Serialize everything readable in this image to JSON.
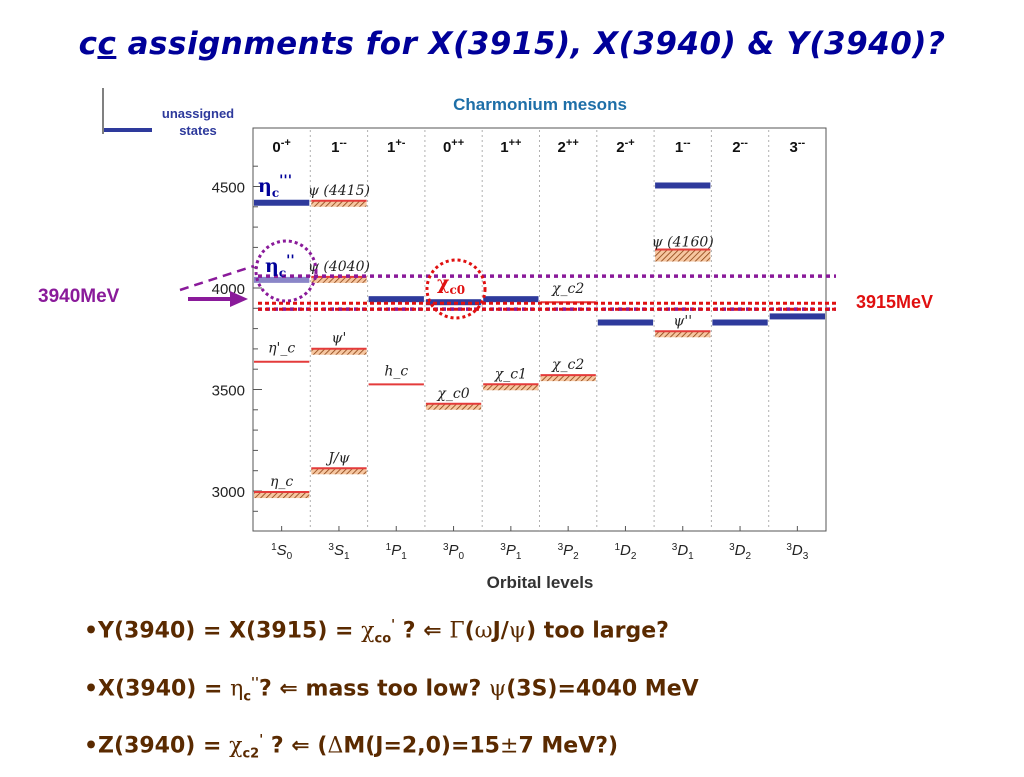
{
  "title_parts": {
    "c1": "c",
    "c2": "c",
    "rest": " assignments for X(3915), X(3940) & Y(3940)?"
  },
  "chart_data": {
    "type": "level-diagram",
    "title": "Charmonium mesons",
    "xlabel": "Orbital levels",
    "ylabel": "",
    "ylim": [
      2850,
      4700
    ],
    "yticks": [
      3000,
      3500,
      4000,
      4500
    ],
    "columns": [
      {
        "jpc": "0-+",
        "orbital": "1S0"
      },
      {
        "jpc": "1--",
        "orbital": "3S1"
      },
      {
        "jpc": "1+-",
        "orbital": "1P1"
      },
      {
        "jpc": "0++",
        "orbital": "3P0"
      },
      {
        "jpc": "1++",
        "orbital": "3P1"
      },
      {
        "jpc": "2++",
        "orbital": "3P2"
      },
      {
        "jpc": "2-+",
        "orbital": "1D2"
      },
      {
        "jpc": "1--",
        "orbital": "3D1"
      },
      {
        "jpc": "2--",
        "orbital": "3D2"
      },
      {
        "jpc": "3--",
        "orbital": "3D3"
      }
    ],
    "states": [
      {
        "col": 0,
        "mass": 2980,
        "label": "η_c",
        "kind": "observed"
      },
      {
        "col": 0,
        "mass": 3637,
        "label": "η'_c",
        "kind": "line"
      },
      {
        "col": 0,
        "mass": 4420,
        "label": "",
        "kind": "unassigned"
      },
      {
        "col": 0,
        "mass": 4040,
        "label": "",
        "kind": "unassigned-light"
      },
      {
        "col": 1,
        "mass": 3097,
        "label": "J/ψ",
        "kind": "observed"
      },
      {
        "col": 1,
        "mass": 3686,
        "label": "ψ'",
        "kind": "observed"
      },
      {
        "col": 1,
        "mass": 4040,
        "label": "ψ (4040)",
        "kind": "observed"
      },
      {
        "col": 1,
        "mass": 4415,
        "label": "ψ (4415)",
        "kind": "observed"
      },
      {
        "col": 2,
        "mass": 3525,
        "label": "h_c",
        "kind": "line"
      },
      {
        "col": 2,
        "mass": 3945,
        "label": "",
        "kind": "unassigned"
      },
      {
        "col": 3,
        "mass": 3415,
        "label": "χ_c0",
        "kind": "observed"
      },
      {
        "col": 3,
        "mass": 3930,
        "label": "",
        "kind": "unassigned"
      },
      {
        "col": 4,
        "mass": 3511,
        "label": "χ_c1",
        "kind": "observed"
      },
      {
        "col": 4,
        "mass": 3945,
        "label": "",
        "kind": "unassigned"
      },
      {
        "col": 5,
        "mass": 3556,
        "label": "χ_c2",
        "kind": "observed"
      },
      {
        "col": 5,
        "mass": 3930,
        "label": "χ_c2",
        "kind": "line"
      },
      {
        "col": 6,
        "mass": 3830,
        "label": "",
        "kind": "unassigned"
      },
      {
        "col": 7,
        "mass": 3772,
        "label": "ψ''",
        "kind": "observed"
      },
      {
        "col": 7,
        "mass": 4160,
        "label": "ψ (4160)",
        "kind": "observed"
      },
      {
        "col": 7,
        "mass": 4505,
        "label": "",
        "kind": "unassigned"
      },
      {
        "col": 8,
        "mass": 3830,
        "label": "",
        "kind": "unassigned"
      },
      {
        "col": 9,
        "mass": 3860,
        "label": "",
        "kind": "unassigned"
      }
    ],
    "legend": {
      "label_line1": "unassigned",
      "label_line2": "states"
    },
    "annotations": {
      "eta_triple": "η",
      "eta_triple_sub": "c",
      "eta_triple_sup": "'''",
      "eta_double": "η",
      "eta_double_sub": "c",
      "eta_double_sup": "''",
      "chi_c0": "χ",
      "chi_c0_sub": "c0",
      "label_3940": "3940MeV",
      "label_3915": "3915MeV",
      "mass_3940": 3940,
      "mass_3915": 3915
    },
    "colors": {
      "unassigned": "#2e3a9c",
      "observed": "#e43b3b",
      "purple": "#8a1a9a",
      "red_dot": "#e01010",
      "title": "#1e6fa8",
      "axis": "#444444"
    }
  },
  "bullets": [
    {
      "pre": "•Y(3940) = X(3915) = ",
      "g1": "χ",
      "g1_sub": "co",
      "g1_sup": "'",
      "mid": " ?  ",
      "arrow": "⇐",
      "post1": " ",
      "gamma": "Γ",
      "post2": "(",
      "omega": "ω",
      "post3": "J/",
      "psi": "ψ",
      "post4": ") too large?"
    },
    {
      "pre": "•X(3940) = ",
      "g1": "η",
      "g1_sub": "c",
      "g1_sup": "''",
      "mid": "?    ",
      "arrow": "⇐",
      "post1": " mass too low? ",
      "psi": "ψ",
      "post2": "(3S)=4040 MeV"
    },
    {
      "pre": "•Z(3940) = ",
      "g1": "χ",
      "g1_sub": "c2",
      "g1_sup": "'",
      "mid": " ?   ",
      "arrow": "⇐",
      "post1": " (",
      "delta": "Δ",
      "post2": "M(J=2,0)=15",
      "pm": "±",
      "post3": "7 MeV?)"
    }
  ]
}
